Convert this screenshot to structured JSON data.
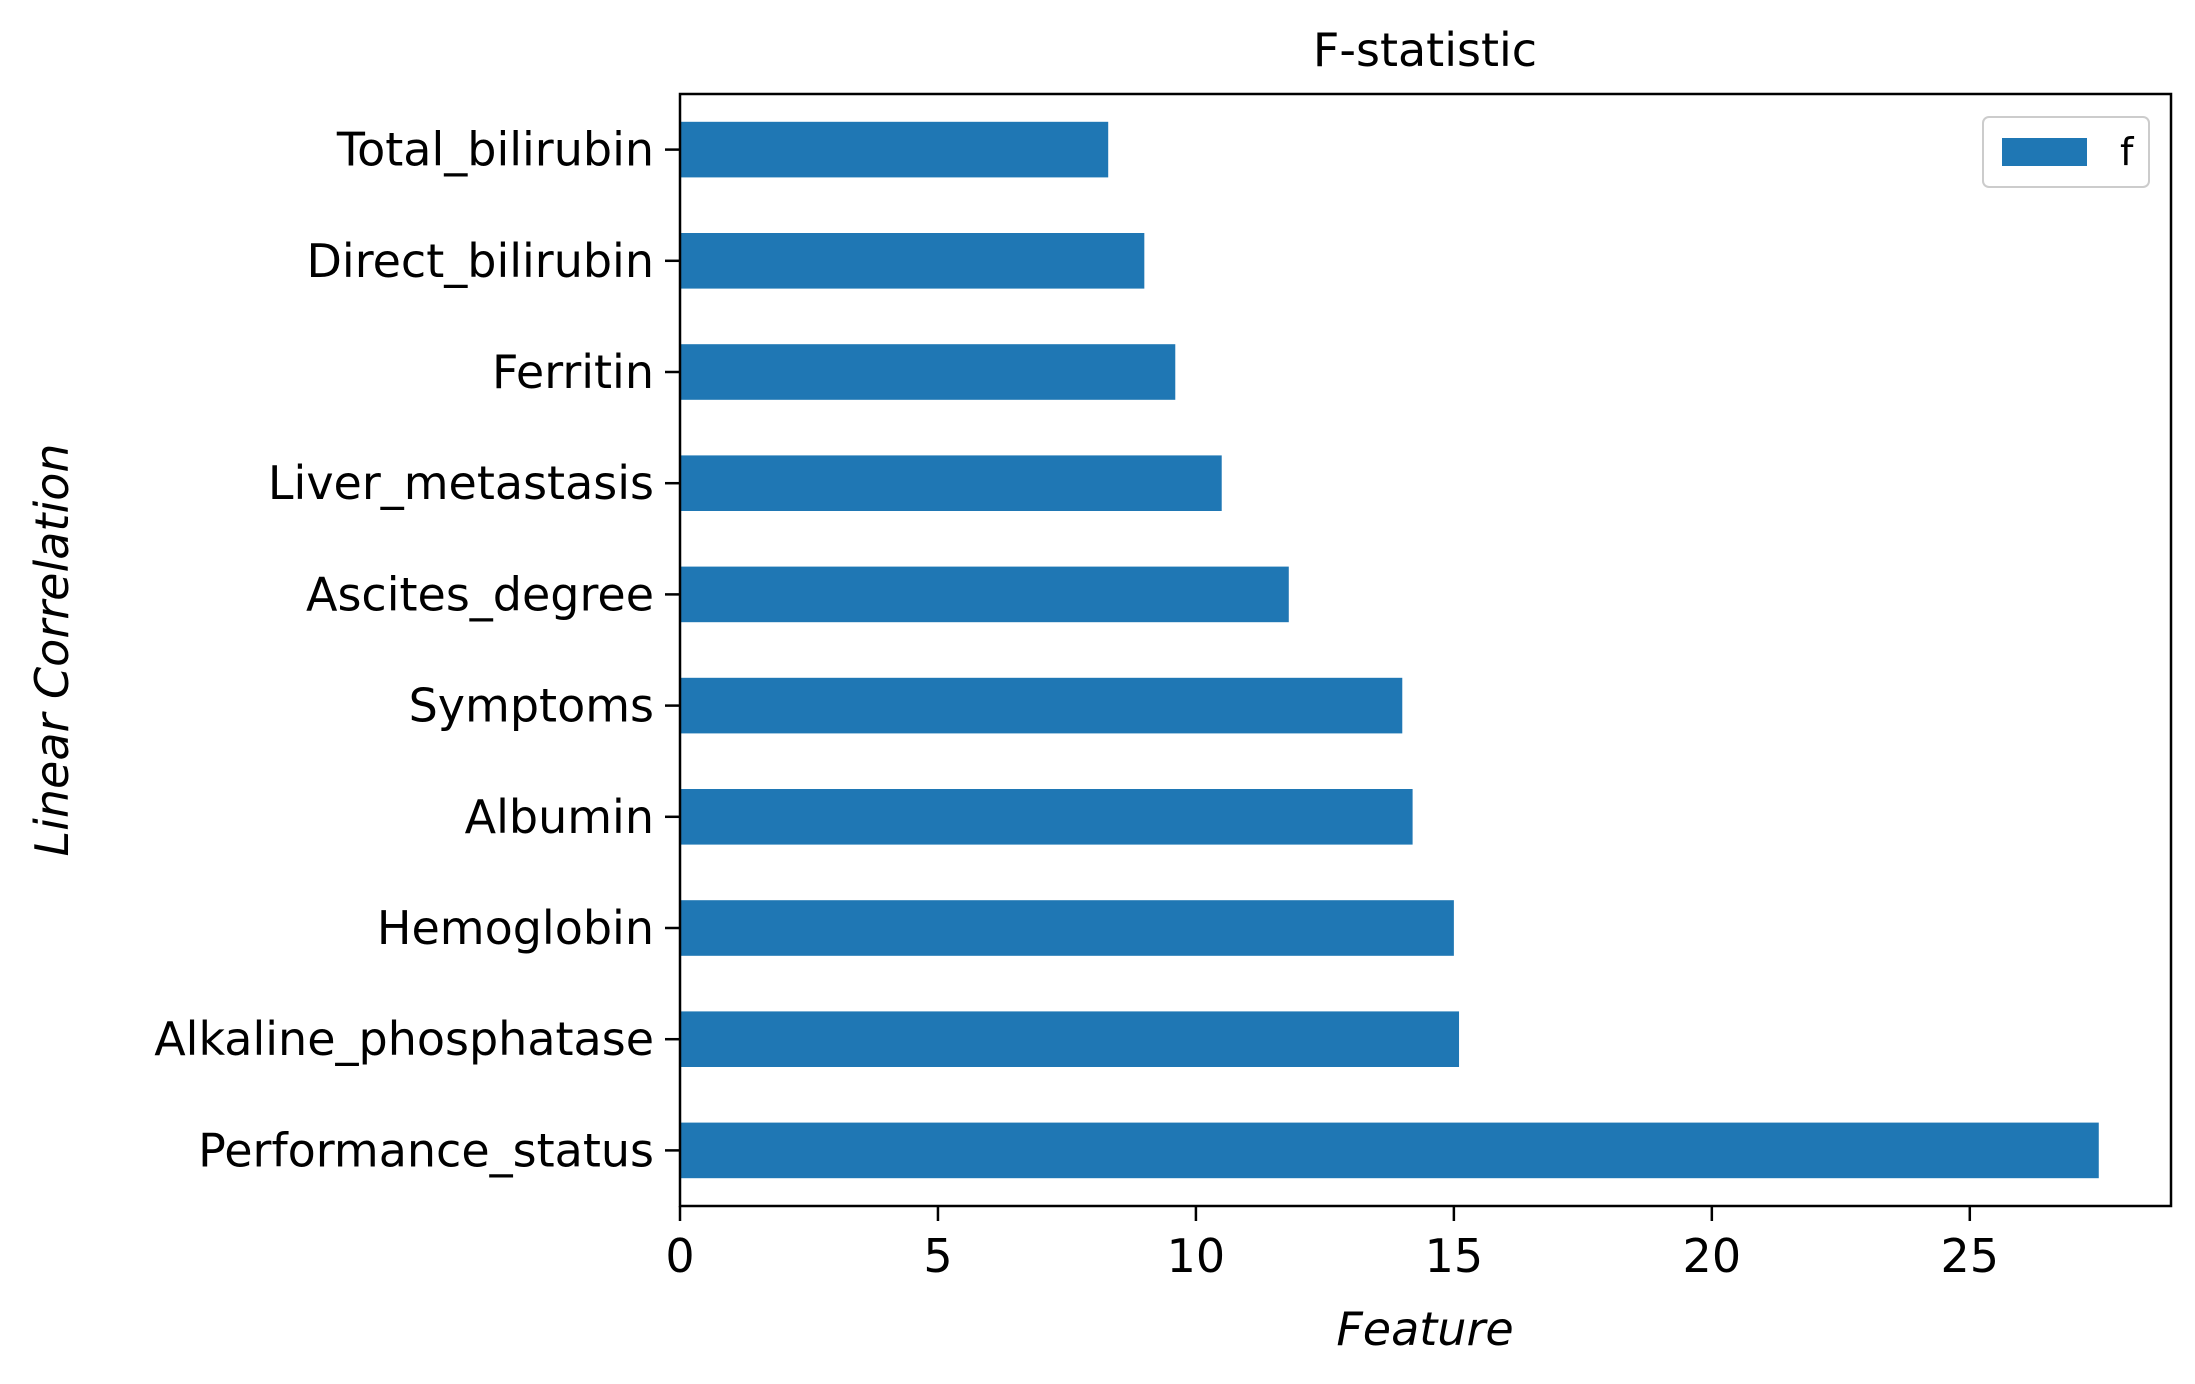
{
  "chart_data": {
    "type": "bar",
    "orientation": "horizontal",
    "title": "F-statistic",
    "xlabel": "Feature",
    "ylabel": "Linear Correlation",
    "categories": [
      "Performance_status",
      "Alkaline_phosphatase",
      "Hemoglobin",
      "Albumin",
      "Symptoms",
      "Ascites_degree",
      "Liver_metastasis",
      "Ferritin",
      "Direct_bilirubin",
      "Total_bilirubin"
    ],
    "series": [
      {
        "name": "f",
        "color": "#1f77b4",
        "values": [
          27.5,
          15.1,
          15.0,
          14.2,
          14.0,
          11.8,
          10.5,
          9.6,
          9.0,
          8.3
        ]
      }
    ],
    "xlim": [
      0,
      28.9
    ],
    "xticks": [
      0,
      5,
      10,
      15,
      20,
      25
    ],
    "grid": false,
    "legend_position": "top-right"
  }
}
